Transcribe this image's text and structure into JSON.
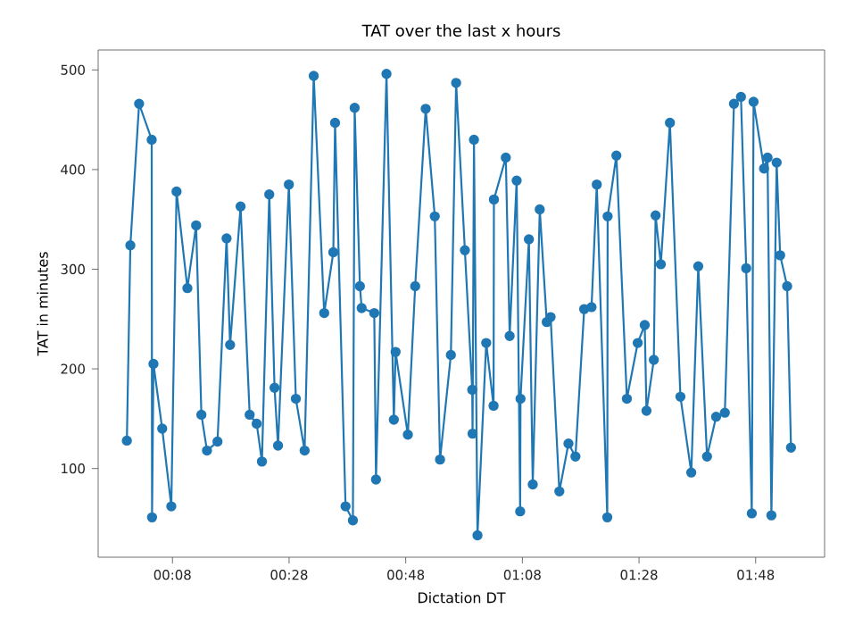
{
  "chart_data": {
    "type": "line",
    "title": "TAT over the last x hours",
    "xlabel": "Dictation DT",
    "ylabel": "TAT in minutes",
    "xlim": [
      -0.079,
      1.997
    ],
    "ylim": [
      11,
      520
    ],
    "xticks": [
      {
        "value": 0.13333,
        "label": "00:08"
      },
      {
        "value": 0.46667,
        "label": "00:28"
      },
      {
        "value": 0.8,
        "label": "00:48"
      },
      {
        "value": 1.13333,
        "label": "01:08"
      },
      {
        "value": 1.46667,
        "label": "01:28"
      },
      {
        "value": 1.8,
        "label": "01:48"
      }
    ],
    "yticks": [
      100,
      200,
      300,
      400,
      500
    ],
    "marker": "circle",
    "line_style": "solid",
    "x": [
      0.003,
      0.013,
      0.038,
      0.074,
      0.075,
      0.079,
      0.104,
      0.13,
      0.145,
      0.176,
      0.201,
      0.216,
      0.232,
      0.262,
      0.288,
      0.298,
      0.328,
      0.354,
      0.374,
      0.389,
      0.41,
      0.425,
      0.435,
      0.466,
      0.486,
      0.511,
      0.537,
      0.567,
      0.593,
      0.598,
      0.628,
      0.649,
      0.654,
      0.669,
      0.674,
      0.71,
      0.715,
      0.745,
      0.766,
      0.771,
      0.806,
      0.827,
      0.857,
      0.883,
      0.898,
      0.929,
      0.944,
      0.969,
      0.99,
      0.991,
      0.995,
      1.005,
      1.03,
      1.051,
      1.052,
      1.086,
      1.097,
      1.117,
      1.127,
      1.128,
      1.152,
      1.163,
      1.183,
      1.203,
      1.214,
      1.239,
      1.265,
      1.285,
      1.31,
      1.331,
      1.346,
      1.376,
      1.377,
      1.402,
      1.432,
      1.463,
      1.483,
      1.488,
      1.509,
      1.514,
      1.529,
      1.555,
      1.585,
      1.616,
      1.636,
      1.661,
      1.687,
      1.712,
      1.738,
      1.758,
      1.773,
      1.789,
      1.794,
      1.824,
      1.834,
      1.845,
      1.86,
      1.87,
      1.89,
      1.901
    ],
    "series": [
      {
        "color": "#1f77b4",
        "values": [
          128,
          324,
          466,
          430,
          51,
          205,
          140,
          62,
          378,
          281,
          344,
          154,
          118,
          127,
          331,
          224,
          363,
          154,
          145,
          107,
          375,
          181,
          123,
          385,
          170,
          118,
          494,
          256,
          317,
          447,
          62,
          48,
          462,
          283,
          261,
          256,
          89,
          496,
          149,
          217,
          134,
          283,
          461,
          353,
          109,
          214,
          487,
          319,
          179,
          135,
          430,
          33,
          226,
          163,
          370,
          412,
          233,
          389,
          57,
          170,
          330,
          84,
          360,
          247,
          252,
          77,
          125,
          112,
          260,
          262,
          385,
          51,
          353,
          414,
          170,
          226,
          244,
          158,
          209,
          354,
          305,
          447,
          172,
          96,
          303,
          112,
          152,
          156,
          466,
          473,
          301,
          55,
          468,
          401,
          412,
          53,
          407,
          314,
          283,
          121
        ]
      }
    ]
  }
}
